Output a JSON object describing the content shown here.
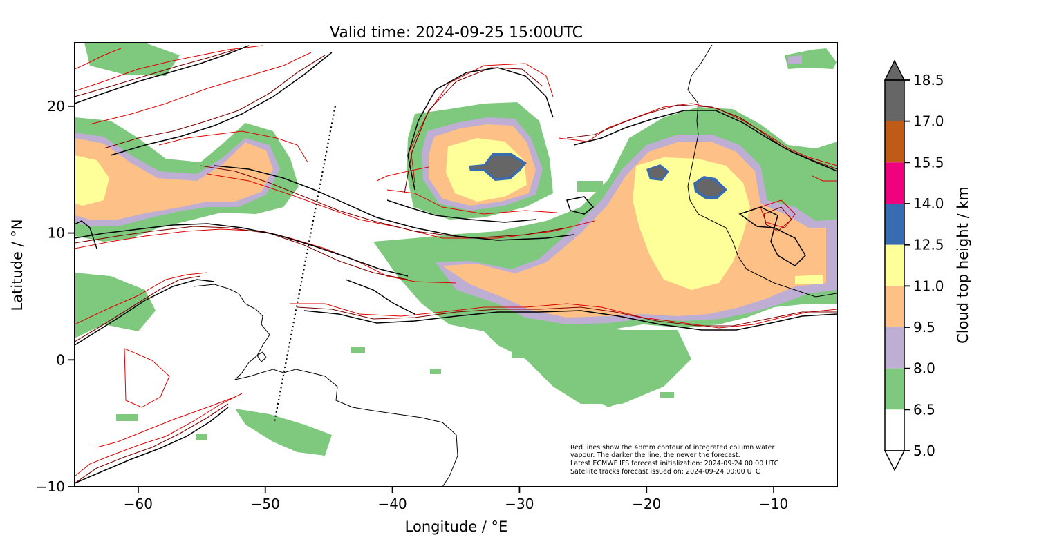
{
  "title": "Valid time: 2024-09-25 15:00UTC",
  "xaxis": {
    "label": "Longitude / °E",
    "range": [
      -65,
      -5
    ],
    "ticks": [
      -60,
      -50,
      -40,
      -30,
      -20,
      -10
    ],
    "tick_labels": [
      "−60",
      "−50",
      "−40",
      "−30",
      "−20",
      "−10"
    ]
  },
  "yaxis": {
    "label": "Latitude / °N",
    "range": [
      -10,
      25
    ],
    "ticks": [
      20,
      10,
      0,
      -10
    ],
    "tick_labels": [
      "20",
      "10",
      "0",
      "−10"
    ]
  },
  "colorbar": {
    "label": "Cloud top height / km",
    "levels": [
      "18.5",
      "17.0",
      "15.5",
      "14.0",
      "12.5",
      "11.0",
      "9.5",
      "8.0",
      "6.5",
      "5.0"
    ],
    "colors": [
      "#666666",
      "#bf5b17",
      "#f0027f",
      "#386cb0",
      "#ffff99",
      "#fdc086",
      "#beaed4",
      "#7fc97f",
      "#ffffff"
    ],
    "extend": "both"
  },
  "note": {
    "lines": [
      "Red lines show the 48mm contour of integrated column water",
      "vapour. The darker the line, the newer the forecast.",
      "Latest ECMWF IFS forecast initialization: 2024-09-24 00:00 UTC",
      "Satellite tracks forecast issued on: 2024-09-24 00:00 UTC"
    ]
  },
  "satellite_track": {
    "start": [
      -44.5,
      20
    ],
    "end": [
      -49.3,
      -5
    ]
  },
  "colors": {
    "contour_new": "#000000",
    "contour_mid": "#6b0000",
    "contour_old": "#dd0000",
    "coast": "#000000"
  }
}
